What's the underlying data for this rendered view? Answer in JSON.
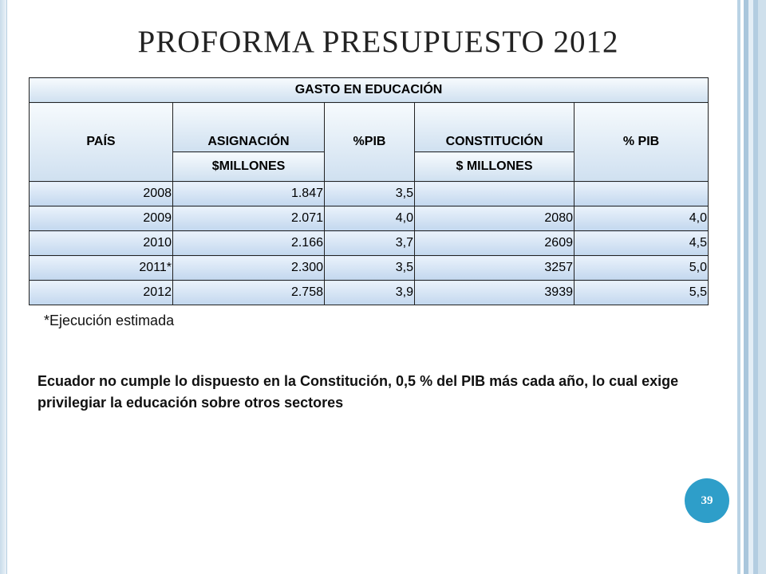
{
  "slide": {
    "title": "PROFORMA PRESUPUESTO 2012",
    "page_number": "39"
  },
  "table": {
    "caption": "GASTO EN EDUCACIÓN",
    "headers": {
      "pais": "PAÍS",
      "asignacion": "ASIGNACIÓN",
      "asignacion_unit": "$MILLONES",
      "pib": "%PIB",
      "constitucion": "CONSTITUCIÓN",
      "constitucion_unit": "$ MILLONES",
      "pib2": "% PIB"
    },
    "rows": [
      {
        "year": "2008",
        "asignacion": "1.847",
        "pib": "3,5",
        "constitucion": "",
        "pib2": ""
      },
      {
        "year": "2009",
        "asignacion": "2.071",
        "pib": "4,0",
        "constitucion": "2080",
        "pib2": "4,0"
      },
      {
        "year": "2010",
        "asignacion": "2.166",
        "pib": "3,7",
        "constitucion": "2609",
        "pib2": "4,5"
      },
      {
        "year": "2011*",
        "asignacion": "2.300",
        "pib": "3,5",
        "constitucion": "3257",
        "pib2": "5,0"
      },
      {
        "year": "2012",
        "asignacion": "2.758",
        "pib": "3,9",
        "constitucion": "3939",
        "pib2": "5,5"
      }
    ]
  },
  "footnote": "*Ejecución estimada",
  "statement": "Ecuador no cumple lo dispuesto en la Constitución, 0,5 % del PIB más cada año, lo cual exige privilegiar la educación sobre otros sectores"
}
